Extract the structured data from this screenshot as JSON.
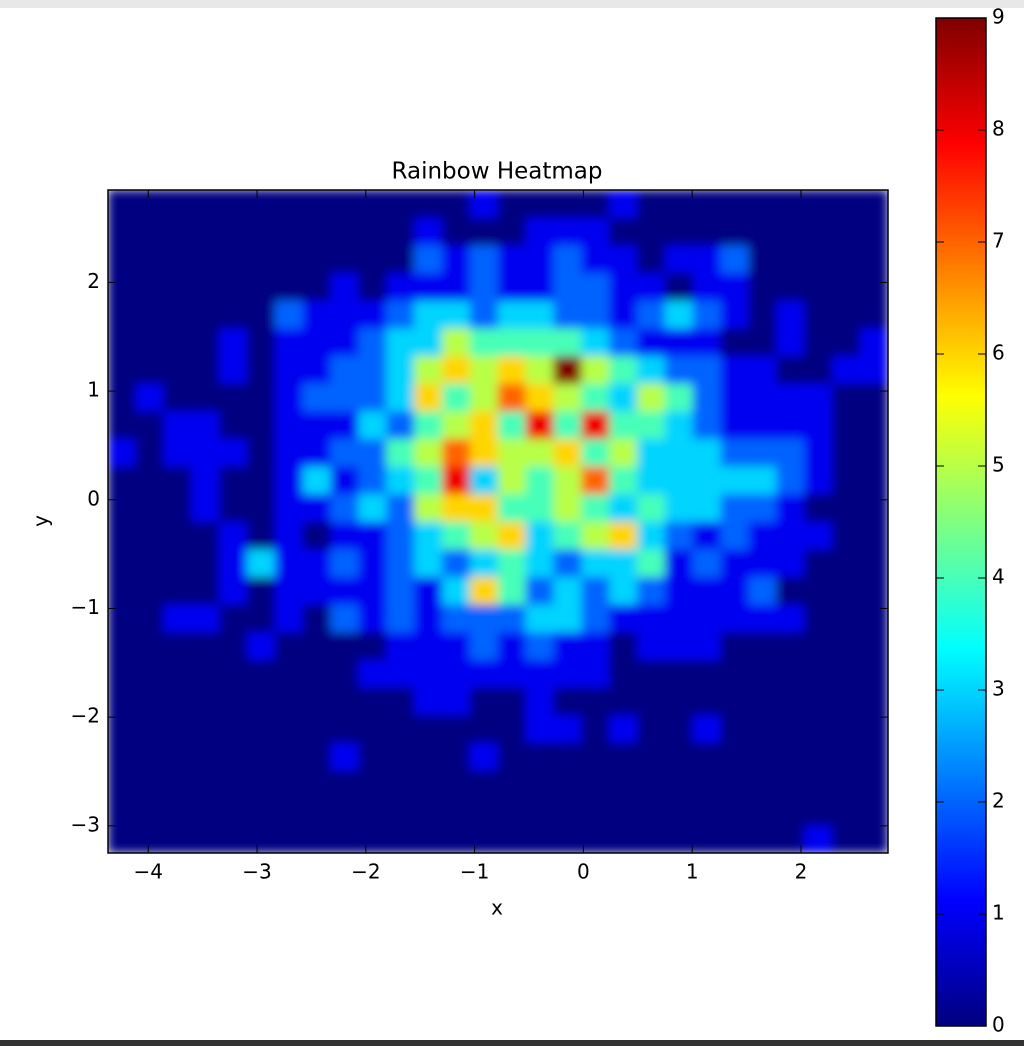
{
  "chart_data": {
    "type": "heatmap",
    "title": "Rainbow Heatmap",
    "x_label": "x",
    "y_label": "y",
    "colormap": "jet",
    "xlim": [
      -4.37,
      2.8
    ],
    "ylim": [
      -3.25,
      2.85
    ],
    "xticks": [
      {
        "value": -4,
        "label": "−4"
      },
      {
        "value": -3,
        "label": "−3"
      },
      {
        "value": -2,
        "label": "−2"
      },
      {
        "value": -1,
        "label": "−1"
      },
      0,
      1,
      2
    ],
    "yticks": [
      {
        "value": -3,
        "label": "−3"
      },
      {
        "value": -2,
        "label": "−2"
      },
      {
        "value": -1,
        "label": "−1"
      },
      0,
      1,
      2
    ],
    "colorbar": {
      "lim": [
        0,
        9
      ],
      "ticks": [
        0,
        1,
        2,
        3,
        4,
        5,
        6,
        7,
        8,
        9
      ]
    },
    "z": [
      [
        0,
        0,
        0,
        0,
        0,
        0,
        0,
        0,
        0,
        0,
        0,
        0,
        0,
        0,
        0,
        0,
        0,
        0,
        0,
        0,
        0,
        0,
        0,
        0,
        0,
        1,
        0,
        0
      ],
      [
        0,
        0,
        0,
        0,
        0,
        0,
        0,
        0,
        0,
        0,
        0,
        0,
        0,
        0,
        0,
        0,
        0,
        0,
        0,
        0,
        0,
        0,
        0,
        0,
        0,
        0,
        0,
        0
      ],
      [
        0,
        0,
        0,
        0,
        0,
        0,
        0,
        0,
        0,
        0,
        0,
        0,
        0,
        0,
        0,
        0,
        0,
        0,
        0,
        0,
        0,
        0,
        0,
        0,
        0,
        0,
        0,
        0
      ],
      [
        0,
        0,
        0,
        0,
        0,
        0,
        0,
        0,
        1,
        0,
        0,
        0,
        0,
        1,
        0,
        0,
        0,
        0,
        0,
        0,
        0,
        0,
        0,
        0,
        0,
        0,
        0,
        0
      ],
      [
        0,
        0,
        0,
        0,
        0,
        0,
        0,
        0,
        0,
        0,
        0,
        0,
        0,
        0,
        0,
        1,
        1,
        0,
        1,
        0,
        0,
        1,
        0,
        0,
        0,
        0,
        0,
        0
      ],
      [
        0,
        0,
        0,
        0,
        0,
        0,
        0,
        0,
        0,
        0,
        0,
        1,
        1,
        0,
        0,
        1,
        0,
        0,
        0,
        0,
        0,
        0,
        0,
        0,
        0,
        0,
        0,
        0
      ],
      [
        0,
        0,
        0,
        0,
        0,
        0,
        0,
        0,
        0,
        1,
        1,
        1,
        1,
        1,
        1,
        1,
        1,
        1,
        0,
        0,
        0,
        0,
        0,
        0,
        0,
        0,
        0,
        0
      ],
      [
        0,
        0,
        0,
        0,
        0,
        1,
        0,
        0,
        0,
        0,
        1,
        1,
        1,
        2,
        1,
        2,
        1,
        1,
        0,
        1,
        1,
        1,
        0,
        0,
        0,
        0,
        0,
        0
      ],
      [
        0,
        0,
        1,
        1,
        0,
        0,
        1,
        0,
        2,
        1,
        2,
        1,
        2,
        2,
        2,
        3,
        3,
        2,
        1,
        1,
        1,
        1,
        1,
        1,
        1,
        0,
        0,
        0
      ],
      [
        0,
        0,
        0,
        0,
        1,
        0,
        1,
        1,
        1,
        1,
        2,
        1,
        3,
        6,
        4,
        2,
        3,
        2,
        3,
        2,
        1,
        1,
        1,
        2,
        0,
        0,
        0,
        0
      ],
      [
        0,
        0,
        0,
        0,
        1,
        3,
        1,
        1,
        2,
        1,
        2,
        3,
        2,
        3,
        4,
        3,
        2,
        3,
        3,
        4,
        1,
        2,
        1,
        1,
        1,
        0,
        0,
        0
      ],
      [
        0,
        0,
        0,
        0,
        1,
        0,
        1,
        0,
        1,
        1,
        2,
        3,
        4,
        5,
        6,
        3,
        4,
        5,
        6,
        3,
        2,
        1,
        2,
        1,
        1,
        1,
        0,
        0
      ],
      [
        0,
        0,
        0,
        1,
        0,
        0,
        1,
        1,
        2,
        3,
        2,
        5,
        6,
        6,
        4,
        4,
        5,
        4,
        3,
        4,
        3,
        3,
        2,
        2,
        1,
        0,
        0,
        0
      ],
      [
        0,
        0,
        0,
        1,
        0,
        0,
        1,
        3,
        1,
        2,
        3,
        4,
        8,
        3,
        5,
        4,
        5,
        7,
        4,
        3,
        3,
        3,
        3,
        3,
        2,
        1,
        0,
        0
      ],
      [
        1,
        0,
        1,
        1,
        1,
        0,
        1,
        1,
        2,
        2,
        4,
        5,
        7,
        6,
        5,
        5,
        6,
        4,
        5,
        3,
        3,
        3,
        2,
        2,
        2,
        1,
        0,
        0
      ],
      [
        0,
        0,
        1,
        1,
        0,
        0,
        1,
        1,
        1,
        3,
        2,
        4,
        5,
        6,
        4,
        8,
        4,
        8,
        4,
        4,
        3,
        2,
        1,
        1,
        1,
        1,
        0,
        0
      ],
      [
        0,
        1,
        0,
        0,
        0,
        0,
        1,
        2,
        2,
        2,
        3,
        6,
        4,
        5,
        7,
        6,
        5,
        4,
        3,
        5,
        4,
        2,
        1,
        1,
        1,
        1,
        0,
        0
      ],
      [
        0,
        0,
        0,
        0,
        1,
        0,
        1,
        1,
        2,
        2,
        3,
        5,
        6,
        5,
        6,
        5,
        9,
        5,
        4,
        3,
        2,
        2,
        1,
        1,
        0,
        0,
        1,
        1
      ],
      [
        0,
        0,
        0,
        0,
        1,
        0,
        1,
        1,
        1,
        2,
        3,
        3,
        5,
        4,
        4,
        4,
        4,
        3,
        2,
        1,
        1,
        1,
        0,
        0,
        1,
        0,
        0,
        1
      ],
      [
        0,
        0,
        0,
        0,
        0,
        0,
        2,
        1,
        1,
        1,
        2,
        3,
        3,
        2,
        3,
        3,
        2,
        2,
        1,
        2,
        3,
        2,
        1,
        0,
        1,
        0,
        0,
        0
      ],
      [
        0,
        0,
        0,
        0,
        0,
        0,
        0,
        0,
        1,
        0,
        1,
        1,
        1,
        2,
        1,
        1,
        2,
        2,
        1,
        1,
        0,
        1,
        1,
        0,
        0,
        0,
        0,
        0
      ],
      [
        0,
        0,
        0,
        0,
        0,
        0,
        0,
        0,
        0,
        0,
        0,
        2,
        1,
        2,
        1,
        1,
        2,
        1,
        1,
        0,
        1,
        1,
        2,
        0,
        0,
        0,
        0,
        0
      ],
      [
        0,
        0,
        0,
        0,
        0,
        0,
        0,
        0,
        0,
        0,
        0,
        1,
        0,
        0,
        0,
        1,
        1,
        1,
        0,
        0,
        0,
        0,
        0,
        0,
        0,
        0,
        0,
        0
      ],
      [
        0,
        0,
        0,
        0,
        0,
        0,
        0,
        0,
        0,
        0,
        0,
        0,
        0,
        1,
        0,
        0,
        0,
        0,
        1,
        0,
        0,
        0,
        0,
        0,
        0,
        0,
        0,
        0
      ]
    ]
  }
}
